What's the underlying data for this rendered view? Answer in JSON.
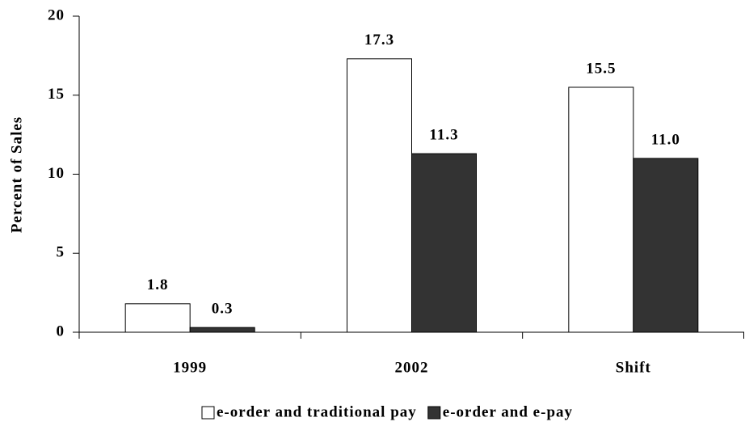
{
  "chart_data": {
    "type": "bar",
    "y_label": "Percent of Sales",
    "categories": [
      "1999",
      "2002",
      "Shift"
    ],
    "series": [
      {
        "name": "e-order and traditional pay",
        "color": "#ffffff",
        "values": [
          1.8,
          17.3,
          15.5
        ],
        "value_labels": [
          "1.8",
          "17.3",
          "15.5"
        ]
      },
      {
        "name": "e-order and e-pay",
        "color": "#333333",
        "values": [
          0.3,
          11.3,
          11.0
        ],
        "value_labels": [
          "0.3",
          "11.3",
          "11.0"
        ]
      }
    ],
    "ylim": [
      0,
      20
    ],
    "yticks": [
      0,
      5,
      10,
      15,
      20
    ],
    "grid": false,
    "legend": "bottom"
  }
}
